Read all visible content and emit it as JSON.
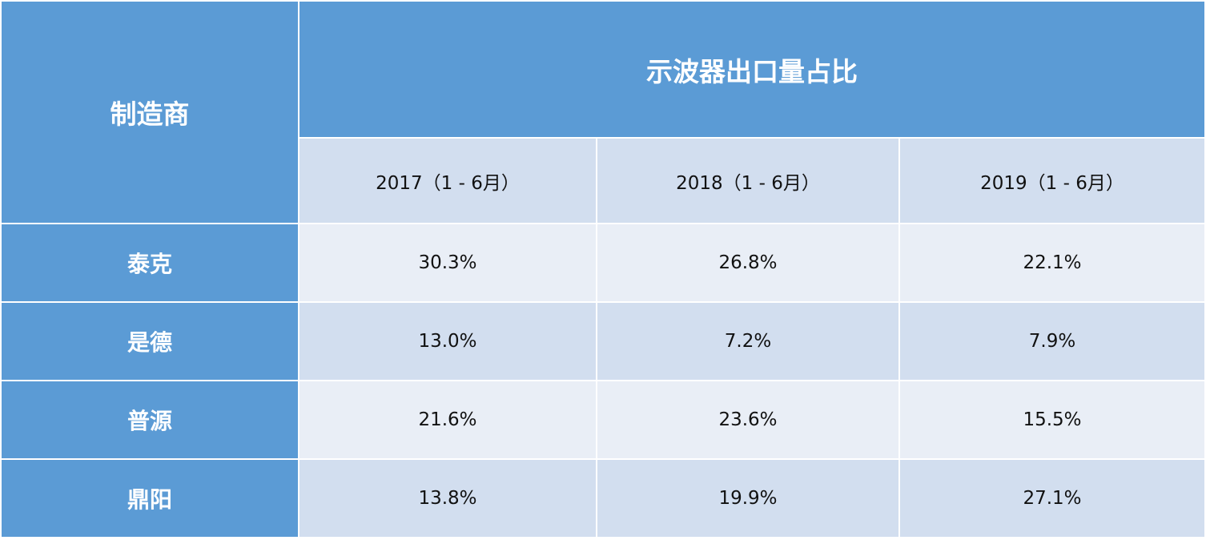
{
  "chart_data": {
    "type": "table",
    "corner_label": "制造商",
    "title": "示波器出口量占比",
    "columns": [
      "2017（1 - 6月）",
      "2018（1 - 6月）",
      "2019（1 - 6月）"
    ],
    "rows": [
      {
        "label": "泰克",
        "values": [
          "30.3%",
          "26.8%",
          "22.1%"
        ]
      },
      {
        "label": "是德",
        "values": [
          "13.0%",
          "7.2%",
          "7.9%"
        ]
      },
      {
        "label": "普源",
        "values": [
          "21.6%",
          "23.6%",
          "15.5%"
        ]
      },
      {
        "label": "鼎阳",
        "values": [
          "13.8%",
          "19.9%",
          "27.1%"
        ]
      }
    ]
  },
  "colors": {
    "header_blue": "#5b9bd5",
    "band_dark": "#d2deef",
    "band_light": "#e9eef6"
  }
}
